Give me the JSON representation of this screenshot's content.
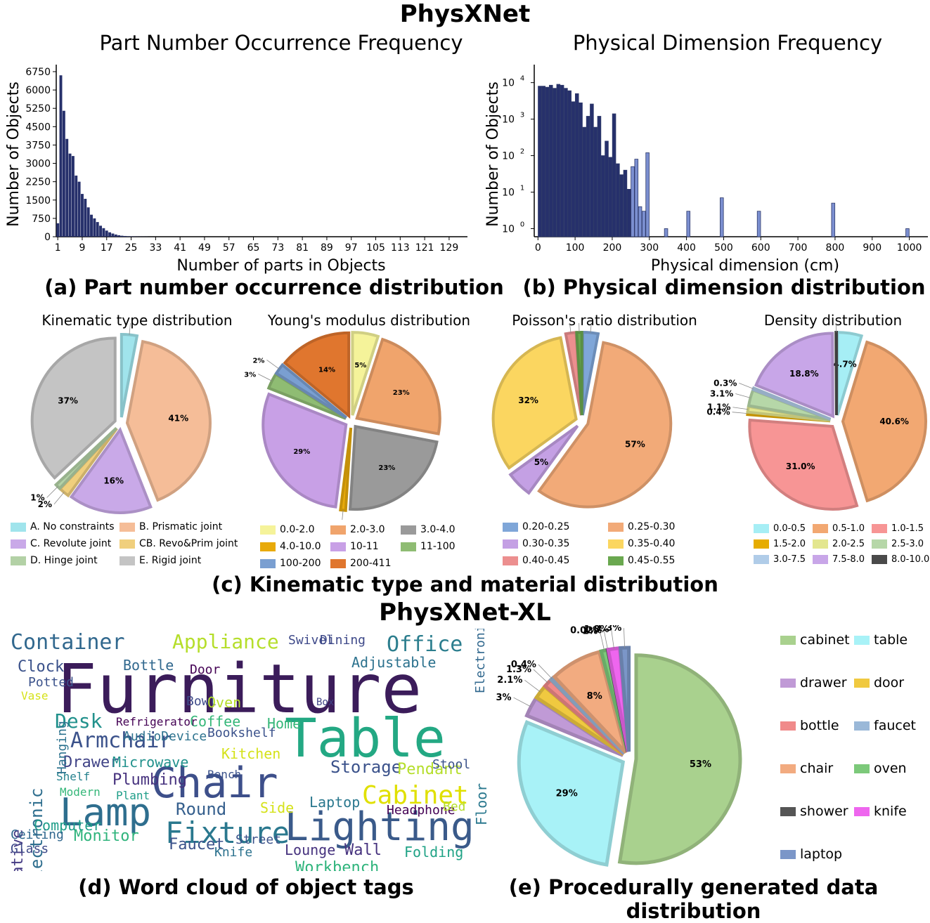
{
  "figure_title": "PhysXNet",
  "figure_title_xl": "PhysXNet-XL",
  "captions": {
    "a": "(a) Part number occurrence distribution",
    "b": "(b) Physical dimension distribution",
    "c": "(c) Kinematic type and material distribution",
    "d": "(d) Word cloud of object tags",
    "e": "(e) Procedurally generated data distribution"
  },
  "chart_data": [
    {
      "id": "a",
      "type": "bar",
      "title": "Part Number Occurrence Frequency",
      "xlabel": "Number of parts in Objects",
      "ylabel": "Number of Objects",
      "ylim": [
        0,
        6750
      ],
      "yticks": [
        0,
        750,
        1500,
        2250,
        3000,
        3750,
        4500,
        5250,
        6000,
        6750
      ],
      "xticks": [
        1,
        9,
        17,
        25,
        33,
        41,
        49,
        57,
        65,
        73,
        81,
        89,
        97,
        105,
        113,
        121,
        129
      ],
      "x": [
        1,
        2,
        3,
        4,
        5,
        6,
        7,
        8,
        9,
        10,
        11,
        12,
        13,
        14,
        15,
        16,
        17,
        18,
        19,
        20,
        21,
        22,
        23,
        24,
        25,
        26,
        27,
        28,
        29,
        30
      ],
      "values": [
        550,
        6600,
        5150,
        4000,
        3400,
        3300,
        2500,
        2250,
        1750,
        1550,
        1200,
        900,
        750,
        600,
        450,
        350,
        250,
        180,
        130,
        90,
        60,
        40,
        30,
        20,
        15,
        10,
        8,
        6,
        5,
        4
      ],
      "color": "#26306b"
    },
    {
      "id": "b",
      "type": "bar",
      "title": "Physical Dimension Frequency",
      "xlabel": "Physical dimension (cm)",
      "ylabel": "Number of Objects",
      "yscale": "log",
      "ylim": [
        0.6,
        20000
      ],
      "yticks": [
        "10^0",
        "10^1",
        "10^2",
        "10^3",
        "10^4"
      ],
      "xticks": [
        0,
        100,
        200,
        300,
        400,
        500,
        600,
        700,
        800,
        900,
        1000
      ],
      "xlim": [
        -10,
        1050
      ],
      "x": [
        5,
        15,
        25,
        35,
        45,
        55,
        65,
        75,
        85,
        95,
        105,
        115,
        125,
        135,
        145,
        155,
        165,
        175,
        185,
        195,
        205,
        215,
        225,
        235,
        245,
        255,
        265,
        275,
        285,
        295,
        345,
        405,
        495,
        595,
        795,
        995
      ],
      "values": [
        8000,
        8000,
        7500,
        8500,
        7000,
        9000,
        8500,
        7000,
        6000,
        3000,
        5000,
        2800,
        600,
        1200,
        2600,
        600,
        1200,
        100,
        250,
        90,
        1400,
        60,
        30,
        40,
        12,
        50,
        80,
        4,
        3,
        120,
        1,
        3,
        7,
        3,
        5,
        1
      ],
      "colors": [
        "#26306b",
        "#7b8fd0"
      ]
    }
  ],
  "pies": [
    {
      "title": "Kinematic type distribution",
      "slices": [
        {
          "label": "A. No constraints",
          "value": 3,
          "text": "3%",
          "color": "#a0e4ec"
        },
        {
          "label": "B. Prismatic joint",
          "value": 41,
          "text": "41%",
          "color": "#f5bd98"
        },
        {
          "label": "C. Revolute joint",
          "value": 16,
          "text": "16%",
          "color": "#c9a9e8"
        },
        {
          "label": "CB. Revo&Prim joint",
          "value": 2,
          "text": "2%",
          "color": "#f0cf7d"
        },
        {
          "label": "D. Hinge joint",
          "value": 1,
          "text": "1%",
          "color": "#b3d1a6"
        },
        {
          "label": "E. Rigid joint",
          "value": 37,
          "text": "37%",
          "color": "#c4c4c4"
        }
      ]
    },
    {
      "title": "Young's modulus distribution",
      "slices": [
        {
          "label": "0.0-2.0",
          "value": 5,
          "text": "5%",
          "color": "#f5f39a"
        },
        {
          "label": "2.0-3.0",
          "value": 23,
          "text": "23%",
          "color": "#f0a46c"
        },
        {
          "label": "3.0-4.0",
          "value": 23,
          "text": "23%",
          "color": "#9a9a9a"
        },
        {
          "label": "4.0-10.0",
          "value": 1,
          "text": "1%",
          "color": "#e8aa0a"
        },
        {
          "label": "10-11",
          "value": 29,
          "text": "29%",
          "color": "#c8a0e6"
        },
        {
          "label": "11-100",
          "value": 3,
          "text": "3%",
          "color": "#8fbc73"
        },
        {
          "label": "100-200",
          "value": 2,
          "text": "2%",
          "color": "#7a9fd1"
        },
        {
          "label": "200-411",
          "value": 14,
          "text": "14%",
          "color": "#e0762e"
        }
      ]
    },
    {
      "title": "Poisson's ratio distribution",
      "slices": [
        {
          "label": "0.20-0.25",
          "value": 3,
          "text": "3%",
          "color": "#7fa6d8"
        },
        {
          "label": "0.25-0.30",
          "value": 57,
          "text": "57%",
          "color": "#f2aa78"
        },
        {
          "label": "0.30-0.35",
          "value": 5,
          "text": "5%",
          "color": "#c4a0e4"
        },
        {
          "label": "0.35-0.40",
          "value": 32,
          "text": "32%",
          "color": "#fbd660"
        },
        {
          "label": "0.40-0.45",
          "value": 2,
          "text": "2%",
          "color": "#ec8f8f"
        },
        {
          "label": "0.45-0.55",
          "value": 1,
          "text": "1%",
          "color": "#6aa84f"
        }
      ]
    },
    {
      "title": "Density distribution",
      "slices": [
        {
          "label": "0.0-0.5",
          "value": 4.7,
          "text": "4.7%",
          "color": "#a6eef5"
        },
        {
          "label": "0.5-1.0",
          "value": 40.6,
          "text": "40.6%",
          "color": "#f2a872"
        },
        {
          "label": "1.0-1.5",
          "value": 31.0,
          "text": "31.0%",
          "color": "#f79595"
        },
        {
          "label": "1.5-2.0",
          "value": 0.4,
          "text": "0.4%",
          "color": "#e6ac00"
        },
        {
          "label": "2.0-2.5",
          "value": 1.1,
          "text": "1.1%",
          "color": "#e3e68f"
        },
        {
          "label": "2.5-3.0",
          "value": 3.1,
          "text": "3.1%",
          "color": "#b6d7a8"
        },
        {
          "label": "3.0-7.5",
          "value": 0.3,
          "text": "0.3%",
          "color": "#b0cce8"
        },
        {
          "label": "7.5-8.0",
          "value": 18.8,
          "text": "18.8%",
          "color": "#c8a6e8"
        },
        {
          "label": "8.0-10.0",
          "value": 0.1,
          "text": "0.1%",
          "color": "#4a4a4a"
        }
      ]
    },
    {
      "title": "",
      "slices": [
        {
          "label": "cabinet",
          "value": 53,
          "text": "53%",
          "color": "#a9d18e"
        },
        {
          "label": "table",
          "value": 29,
          "text": "29%",
          "color": "#a8f2f7"
        },
        {
          "label": "drawer",
          "value": 3,
          "text": "3%",
          "color": "#c09ad6"
        },
        {
          "label": "door",
          "value": 2.1,
          "text": "2.1%",
          "color": "#f0c940"
        },
        {
          "label": "bottle",
          "value": 1.3,
          "text": "1.3%",
          "color": "#f08a8a"
        },
        {
          "label": "faucet",
          "value": 0.4,
          "text": "0.4%",
          "color": "#9ab8d8"
        },
        {
          "label": "chair",
          "value": 8,
          "text": "8%",
          "color": "#f2ab80"
        },
        {
          "label": "oven",
          "value": 1,
          "text": "1%",
          "color": "#7cc97a"
        },
        {
          "label": "shower",
          "value": 0.02,
          "text": "0.02%",
          "color": "#555555"
        },
        {
          "label": "knife",
          "value": 1.8,
          "text": "1.8%",
          "color": "#ee66ee"
        },
        {
          "label": "laptop",
          "value": 1.3,
          "text": "1.3%",
          "color": "#7b96c8"
        }
      ]
    }
  ],
  "wordcloud": [
    {
      "w": "Furniture",
      "c": "#3b1c5a"
    },
    {
      "w": "Table",
      "c": "#23a883"
    },
    {
      "w": "Chair",
      "c": "#3d4f8a"
    },
    {
      "w": "Lamp",
      "c": "#2e6e8e"
    },
    {
      "w": "Lighting",
      "c": "#3a5a8a"
    },
    {
      "w": "Fixture",
      "c": "#2a788e"
    },
    {
      "w": "Cabinet",
      "c": "#e0e000"
    },
    {
      "w": "Container",
      "c": "#31688e"
    },
    {
      "w": "Appliance",
      "c": "#b5de2b"
    },
    {
      "w": "Office",
      "c": "#2c7e8e"
    },
    {
      "w": "Armchair",
      "c": "#3b528b"
    },
    {
      "w": "Desk",
      "c": "#21918c"
    },
    {
      "w": "Electronic",
      "c": "#2e6e8e"
    },
    {
      "w": "Decorative",
      "c": "#443a83"
    },
    {
      "w": "Monitor",
      "c": "#2fb47c"
    },
    {
      "w": "Faucet",
      "c": "#3b528b"
    },
    {
      "w": "Round",
      "c": "#355f8d"
    },
    {
      "w": "Plumbing",
      "c": "#46327e"
    },
    {
      "w": "Workbench",
      "c": "#2fb47c"
    },
    {
      "w": "Storage",
      "c": "#3b528b"
    },
    {
      "w": "Pendant",
      "c": "#b5de2b"
    },
    {
      "w": "Laptop",
      "c": "#2a788e"
    },
    {
      "w": "Headphone",
      "c": "#440154"
    },
    {
      "w": "Folding",
      "c": "#20a386"
    },
    {
      "w": "Wall",
      "c": "#46327e"
    },
    {
      "w": "Clock",
      "c": "#3b528b"
    },
    {
      "w": "Bottle",
      "c": "#31688e"
    },
    {
      "w": "Dining",
      "c": "#3e4989"
    },
    {
      "w": "Adjustable",
      "c": "#2c728e"
    },
    {
      "w": "Drawer",
      "c": "#414487"
    },
    {
      "w": "Microwave",
      "c": "#21918c"
    },
    {
      "w": "Coffee",
      "c": "#35b779"
    },
    {
      "w": "Kitchen",
      "c": "#d5e21a"
    },
    {
      "w": "Bookshelf",
      "c": "#3b528b"
    },
    {
      "w": "AudioDevice",
      "c": "#2c728e"
    },
    {
      "w": "Computer",
      "c": "#1f9e89"
    },
    {
      "w": "Glass",
      "c": "#3e4a89"
    },
    {
      "w": "Ceiling",
      "c": "#31688e"
    },
    {
      "w": "Knife",
      "c": "#2c728e"
    },
    {
      "w": "Street",
      "c": "#3b528b"
    },
    {
      "w": "Lounge",
      "c": "#46327e"
    },
    {
      "w": "Floor",
      "c": "#2a788e"
    },
    {
      "w": "Bed",
      "c": "#b5de2b"
    },
    {
      "w": "Potted",
      "c": "#3b528b"
    },
    {
      "w": "Vase",
      "c": "#d5e21a"
    },
    {
      "w": "Door",
      "c": "#440154"
    },
    {
      "w": "Bowl",
      "c": "#3e4a89"
    },
    {
      "w": "Shelf",
      "c": "#26828e"
    },
    {
      "w": "Plant",
      "c": "#1f9e89"
    },
    {
      "w": "Modern",
      "c": "#35b779"
    },
    {
      "w": "Hanging",
      "c": "#2c728e"
    },
    {
      "w": "ElectronicDevice",
      "c": "#31688e"
    },
    {
      "w": "Swivel",
      "c": "#3e4989"
    },
    {
      "w": "Box",
      "c": "#414487"
    },
    {
      "w": "Home",
      "c": "#35b779"
    },
    {
      "w": "Stool",
      "c": "#3b528b"
    },
    {
      "w": "Bench",
      "c": "#3b528b"
    },
    {
      "w": "Refrigerator",
      "c": "#440154"
    },
    {
      "w": "Side",
      "c": "#d5e21a"
    },
    {
      "w": "Oven",
      "c": "#b5de2b"
    }
  ]
}
